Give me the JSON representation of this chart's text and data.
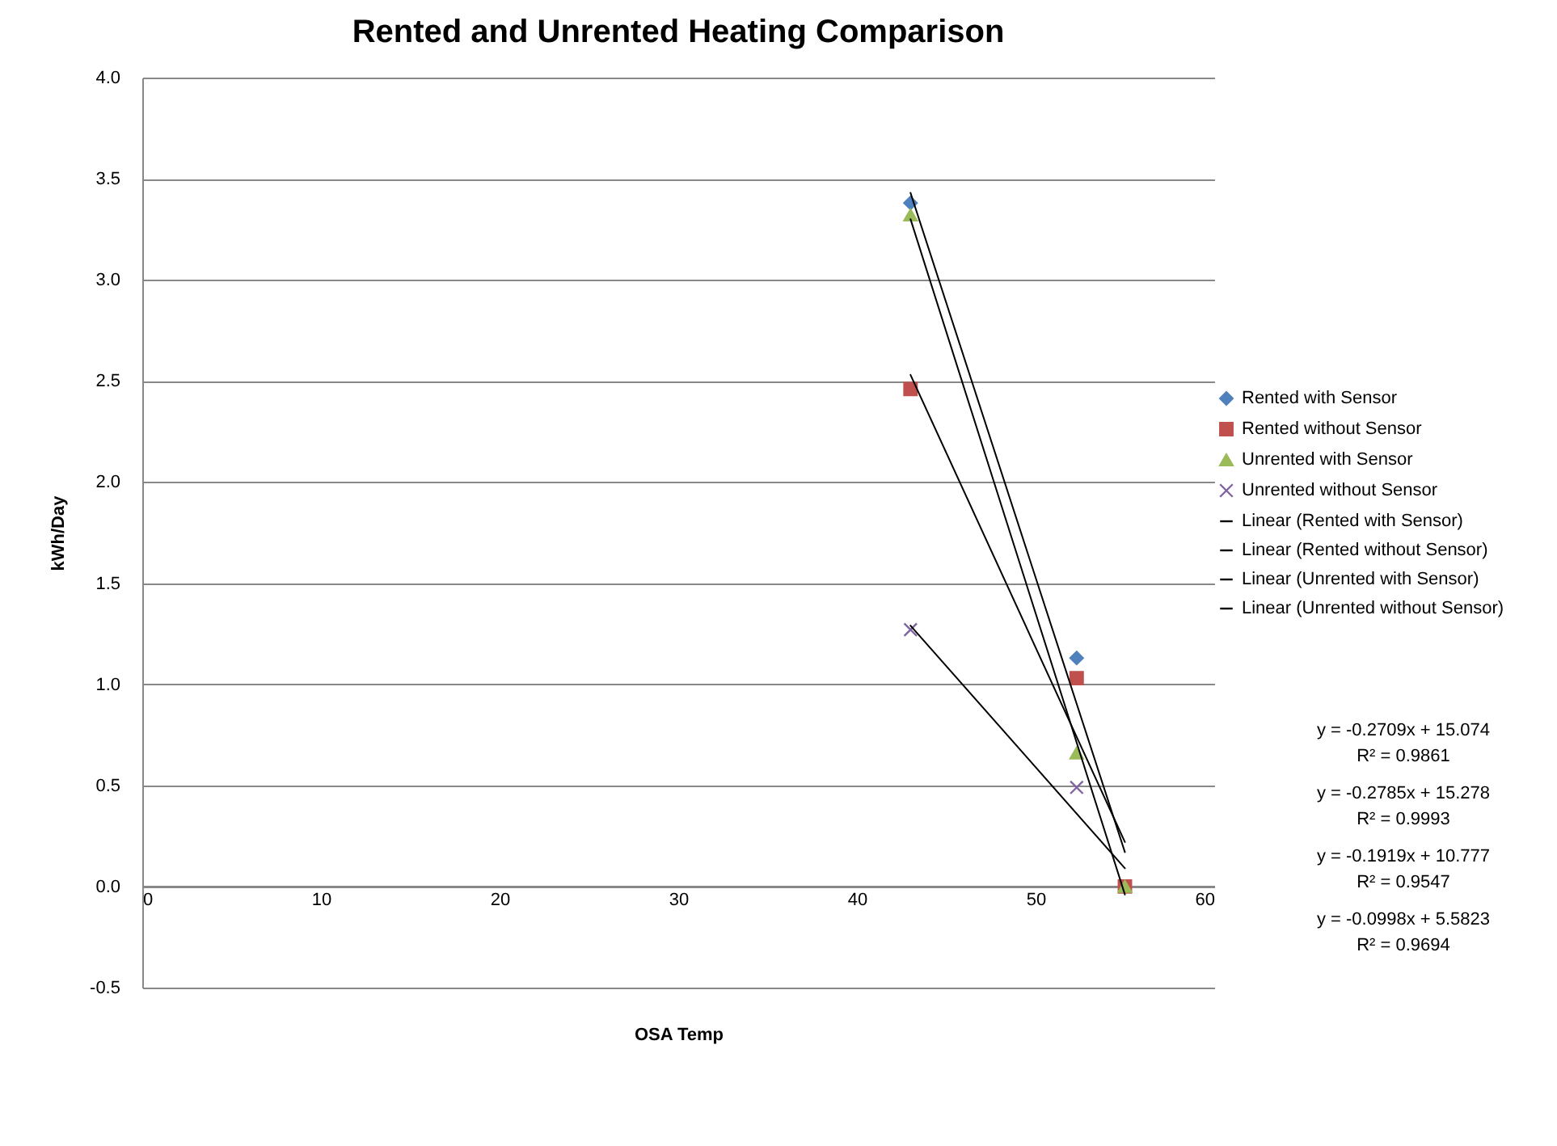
{
  "chart_data": {
    "type": "scatter",
    "title": "Rented and Unrented Heating Comparison",
    "xlabel": "OSA Temp",
    "ylabel": "kWh/Day",
    "xlim": [
      0,
      60
    ],
    "xticks": [
      0,
      10,
      20,
      30,
      40,
      50,
      60
    ],
    "ylim": [
      -0.5,
      4.0
    ],
    "yticks": [
      {
        "value": -0.5,
        "label": "-0.5"
      },
      {
        "value": 0,
        "label": "0.0"
      },
      {
        "value": 0.5,
        "label": "0.5"
      },
      {
        "value": 1,
        "label": "1.0"
      },
      {
        "value": 1.5,
        "label": "1.5"
      },
      {
        "value": 2,
        "label": "2.0"
      },
      {
        "value": 2.5,
        "label": "2.5"
      },
      {
        "value": 3,
        "label": "3.0"
      },
      {
        "value": 3.5,
        "label": "3.5"
      },
      {
        "value": 4,
        "label": "4.0"
      }
    ],
    "grid": "y",
    "legend": "right",
    "series": [
      {
        "name": "Rented with Sensor",
        "color": "#4f81bd",
        "marker": "diamond",
        "x": [
          43,
          52.3
        ],
        "values": [
          3.38,
          1.13
        ]
      },
      {
        "name": "Rented without Sensor",
        "color": "#c0504d",
        "marker": "square",
        "x": [
          43,
          52.3,
          55
        ],
        "values": [
          2.46,
          1.03,
          0
        ]
      },
      {
        "name": "Unrented with Sensor",
        "color": "#9bbb59",
        "marker": "triangle",
        "x": [
          43,
          52.3,
          55
        ],
        "values": [
          3.32,
          0.66,
          0
        ]
      },
      {
        "name": "Unrented without Sensor",
        "color": "#8064a2",
        "marker": "cross",
        "x": [
          43,
          52.3
        ],
        "values": [
          1.27,
          0.49
        ]
      },
      {
        "name": "Linear (Rented with Sensor)",
        "type": "line",
        "color": "#000000",
        "x": [
          43,
          55
        ],
        "values": [
          3.43,
          0.17
        ]
      },
      {
        "name": "Linear (Rented without Sensor)",
        "type": "line",
        "color": "#000000",
        "x": [
          43,
          55
        ],
        "values": [
          2.53,
          0.22
        ]
      },
      {
        "name": "Linear (Unrented with Sensor)",
        "type": "line",
        "color": "#000000",
        "x": [
          43,
          55
        ],
        "values": [
          3.3,
          -0.04
        ]
      },
      {
        "name": "Linear (Unrented without Sensor)",
        "type": "line",
        "color": "#000000",
        "x": [
          43,
          55
        ],
        "values": [
          1.29,
          0.09
        ]
      }
    ],
    "annotations": [
      "y = -0.2709x + 15.074",
      "R² = 0.9861",
      "y = -0.2785x + 15.278",
      "R² = 0.9993",
      "y = -0.1919x + 10.777",
      "R² = 0.9547",
      "y = -0.0998x + 5.5823",
      "R² = 0.9694"
    ]
  }
}
